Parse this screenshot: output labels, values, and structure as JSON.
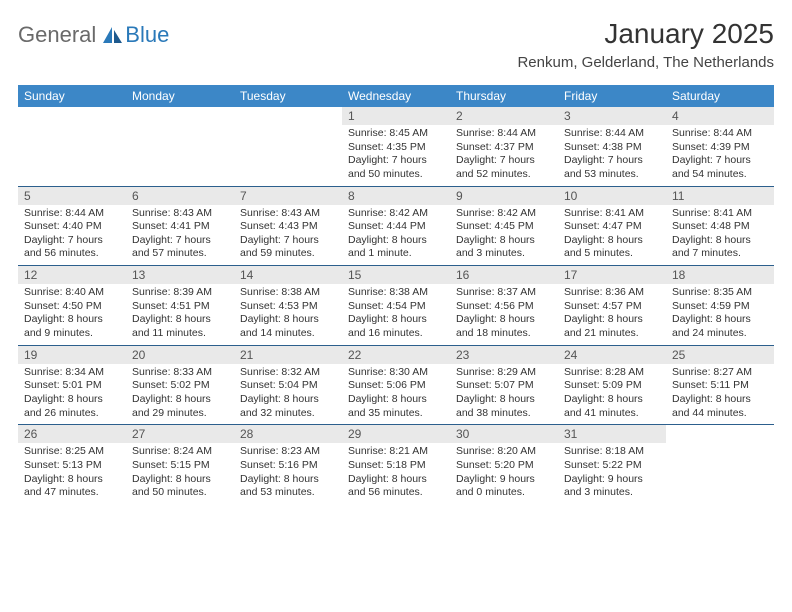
{
  "brand": {
    "general": "General",
    "blue": "Blue"
  },
  "title": "January 2025",
  "location": "Renkum, Gelderland, The Netherlands",
  "weekday_header_bg": "#3c87c7",
  "weekday_text_color": "#ffffff",
  "daynum_bg": "#e9e9e9",
  "border_color": "#2c5f8d",
  "weekdays": [
    "Sunday",
    "Monday",
    "Tuesday",
    "Wednesday",
    "Thursday",
    "Friday",
    "Saturday"
  ],
  "weeks": [
    [
      null,
      null,
      null,
      {
        "n": "1",
        "sunrise": "8:45 AM",
        "sunset": "4:35 PM",
        "daylight": "7 hours and 50 minutes."
      },
      {
        "n": "2",
        "sunrise": "8:44 AM",
        "sunset": "4:37 PM",
        "daylight": "7 hours and 52 minutes."
      },
      {
        "n": "3",
        "sunrise": "8:44 AM",
        "sunset": "4:38 PM",
        "daylight": "7 hours and 53 minutes."
      },
      {
        "n": "4",
        "sunrise": "8:44 AM",
        "sunset": "4:39 PM",
        "daylight": "7 hours and 54 minutes."
      }
    ],
    [
      {
        "n": "5",
        "sunrise": "8:44 AM",
        "sunset": "4:40 PM",
        "daylight": "7 hours and 56 minutes."
      },
      {
        "n": "6",
        "sunrise": "8:43 AM",
        "sunset": "4:41 PM",
        "daylight": "7 hours and 57 minutes."
      },
      {
        "n": "7",
        "sunrise": "8:43 AM",
        "sunset": "4:43 PM",
        "daylight": "7 hours and 59 minutes."
      },
      {
        "n": "8",
        "sunrise": "8:42 AM",
        "sunset": "4:44 PM",
        "daylight": "8 hours and 1 minute."
      },
      {
        "n": "9",
        "sunrise": "8:42 AM",
        "sunset": "4:45 PM",
        "daylight": "8 hours and 3 minutes."
      },
      {
        "n": "10",
        "sunrise": "8:41 AM",
        "sunset": "4:47 PM",
        "daylight": "8 hours and 5 minutes."
      },
      {
        "n": "11",
        "sunrise": "8:41 AM",
        "sunset": "4:48 PM",
        "daylight": "8 hours and 7 minutes."
      }
    ],
    [
      {
        "n": "12",
        "sunrise": "8:40 AM",
        "sunset": "4:50 PM",
        "daylight": "8 hours and 9 minutes."
      },
      {
        "n": "13",
        "sunrise": "8:39 AM",
        "sunset": "4:51 PM",
        "daylight": "8 hours and 11 minutes."
      },
      {
        "n": "14",
        "sunrise": "8:38 AM",
        "sunset": "4:53 PM",
        "daylight": "8 hours and 14 minutes."
      },
      {
        "n": "15",
        "sunrise": "8:38 AM",
        "sunset": "4:54 PM",
        "daylight": "8 hours and 16 minutes."
      },
      {
        "n": "16",
        "sunrise": "8:37 AM",
        "sunset": "4:56 PM",
        "daylight": "8 hours and 18 minutes."
      },
      {
        "n": "17",
        "sunrise": "8:36 AM",
        "sunset": "4:57 PM",
        "daylight": "8 hours and 21 minutes."
      },
      {
        "n": "18",
        "sunrise": "8:35 AM",
        "sunset": "4:59 PM",
        "daylight": "8 hours and 24 minutes."
      }
    ],
    [
      {
        "n": "19",
        "sunrise": "8:34 AM",
        "sunset": "5:01 PM",
        "daylight": "8 hours and 26 minutes."
      },
      {
        "n": "20",
        "sunrise": "8:33 AM",
        "sunset": "5:02 PM",
        "daylight": "8 hours and 29 minutes."
      },
      {
        "n": "21",
        "sunrise": "8:32 AM",
        "sunset": "5:04 PM",
        "daylight": "8 hours and 32 minutes."
      },
      {
        "n": "22",
        "sunrise": "8:30 AM",
        "sunset": "5:06 PM",
        "daylight": "8 hours and 35 minutes."
      },
      {
        "n": "23",
        "sunrise": "8:29 AM",
        "sunset": "5:07 PM",
        "daylight": "8 hours and 38 minutes."
      },
      {
        "n": "24",
        "sunrise": "8:28 AM",
        "sunset": "5:09 PM",
        "daylight": "8 hours and 41 minutes."
      },
      {
        "n": "25",
        "sunrise": "8:27 AM",
        "sunset": "5:11 PM",
        "daylight": "8 hours and 44 minutes."
      }
    ],
    [
      {
        "n": "26",
        "sunrise": "8:25 AM",
        "sunset": "5:13 PM",
        "daylight": "8 hours and 47 minutes."
      },
      {
        "n": "27",
        "sunrise": "8:24 AM",
        "sunset": "5:15 PM",
        "daylight": "8 hours and 50 minutes."
      },
      {
        "n": "28",
        "sunrise": "8:23 AM",
        "sunset": "5:16 PM",
        "daylight": "8 hours and 53 minutes."
      },
      {
        "n": "29",
        "sunrise": "8:21 AM",
        "sunset": "5:18 PM",
        "daylight": "8 hours and 56 minutes."
      },
      {
        "n": "30",
        "sunrise": "8:20 AM",
        "sunset": "5:20 PM",
        "daylight": "9 hours and 0 minutes."
      },
      {
        "n": "31",
        "sunrise": "8:18 AM",
        "sunset": "5:22 PM",
        "daylight": "9 hours and 3 minutes."
      },
      null
    ]
  ],
  "labels": {
    "sunrise": "Sunrise: ",
    "sunset": "Sunset: ",
    "daylight": "Daylight: "
  }
}
